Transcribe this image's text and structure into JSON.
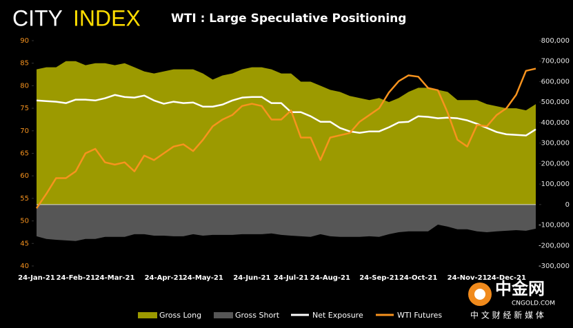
{
  "brand": {
    "first": "CITY",
    "second": "INDEX"
  },
  "watermark": {
    "name": "中金网",
    "site": "CNGOLD.COM",
    "tagline": "中 文 财 经 新 媒 体"
  },
  "chart_data": {
    "type": "combo",
    "title": "WTI : Large Speculative Positioning",
    "categories": [
      "24-Jan-21",
      null,
      null,
      null,
      "24-Feb-21",
      null,
      null,
      null,
      "24-Mar-21",
      null,
      null,
      null,
      null,
      "24-Apr-21",
      null,
      null,
      null,
      "24-May-21",
      null,
      null,
      null,
      null,
      "24-Jun-21",
      null,
      null,
      null,
      "24-Jul-21",
      null,
      null,
      null,
      "24-Aug-21",
      null,
      null,
      null,
      null,
      "24-Sep-21",
      null,
      null,
      null,
      "24-Oct-21",
      null,
      null,
      null,
      null,
      "24-Nov-21",
      null,
      null,
      null,
      "24-Dec-21",
      null,
      null,
      null
    ],
    "ylim": [
      40,
      90
    ],
    "yticks": [
      40,
      45,
      50,
      55,
      60,
      65,
      70,
      75,
      80,
      85,
      90
    ],
    "y2lim": [
      -300000,
      800000
    ],
    "y2ticks": [
      {
        "value": -300000,
        "label": "-300,000"
      },
      {
        "value": -200000,
        "label": "-200,000"
      },
      {
        "value": -100000,
        "label": "-100,000"
      },
      0,
      {
        "value": 100000,
        "label": "100,000"
      },
      {
        "value": 200000,
        "label": "200,000"
      },
      {
        "value": 300000,
        "label": "300,000"
      },
      {
        "value": 400000,
        "label": "400,000"
      },
      {
        "value": 500000,
        "label": "500,000"
      },
      {
        "value": 600000,
        "label": "600,000"
      },
      {
        "value": 700000,
        "label": "700,000"
      },
      {
        "value": 800000,
        "label": "800,000"
      }
    ],
    "series": [
      {
        "name": "Gross Long",
        "type": "area",
        "axis": "y2",
        "color": "#9c9a00",
        "values": [
          660000,
          670000,
          670000,
          700000,
          700000,
          680000,
          690000,
          690000,
          680000,
          690000,
          670000,
          650000,
          640000,
          650000,
          660000,
          660000,
          660000,
          640000,
          610000,
          630000,
          640000,
          660000,
          670000,
          670000,
          660000,
          640000,
          640000,
          600000,
          600000,
          580000,
          560000,
          550000,
          530000,
          520000,
          510000,
          520000,
          500000,
          520000,
          550000,
          570000,
          570000,
          560000,
          550000,
          510000,
          510000,
          510000,
          490000,
          480000,
          470000,
          470000,
          460000,
          490000
        ]
      },
      {
        "name": "Gross Short",
        "type": "area",
        "axis": "y2",
        "color": "#565656",
        "values": [
          -155000,
          -168000,
          -172000,
          -175000,
          -178000,
          -168000,
          -168000,
          -158000,
          -158000,
          -158000,
          -145000,
          -145000,
          -152000,
          -152000,
          -155000,
          -155000,
          -145000,
          -152000,
          -148000,
          -148000,
          -148000,
          -145000,
          -145000,
          -145000,
          -141000,
          -148000,
          -152000,
          -155000,
          -158000,
          -145000,
          -155000,
          -158000,
          -158000,
          -158000,
          -155000,
          -158000,
          -145000,
          -135000,
          -131000,
          -131000,
          -131000,
          -98000,
          -108000,
          -121000,
          -121000,
          -131000,
          -135000,
          -131000,
          -128000,
          -125000,
          -128000,
          -118000
        ]
      },
      {
        "name": "Net Exposure",
        "type": "line",
        "axis": "y2",
        "color": "#ffffff",
        "values": [
          508000,
          505000,
          502000,
          495000,
          512000,
          512000,
          508000,
          519000,
          535000,
          525000,
          522000,
          532000,
          508000,
          492000,
          502000,
          495000,
          498000,
          478000,
          478000,
          488000,
          508000,
          522000,
          525000,
          525000,
          495000,
          495000,
          451000,
          451000,
          431000,
          404000,
          404000,
          374000,
          357000,
          350000,
          357000,
          357000,
          377000,
          401000,
          404000,
          431000,
          428000,
          421000,
          424000,
          421000,
          411000,
          394000,
          374000,
          354000,
          343000,
          340000,
          337000,
          367000
        ]
      },
      {
        "name": "WTI Futures",
        "type": "line",
        "color": "#f7931e",
        "values": [
          52.8,
          56,
          59.5,
          59.5,
          61,
          65,
          66,
          63,
          62.5,
          63,
          61,
          64.5,
          63.5,
          65,
          66.5,
          67,
          65.5,
          68,
          71,
          72.5,
          73.5,
          75.5,
          76,
          75.5,
          72.5,
          72.5,
          74.5,
          68.5,
          68.5,
          63.5,
          68.5,
          69,
          69.5,
          72,
          73.5,
          75,
          78.5,
          81,
          82.3,
          82,
          79.5,
          79,
          74,
          68,
          66.5,
          71.3,
          71,
          73.5,
          75,
          78,
          83.3,
          83.8
        ]
      }
    ]
  }
}
